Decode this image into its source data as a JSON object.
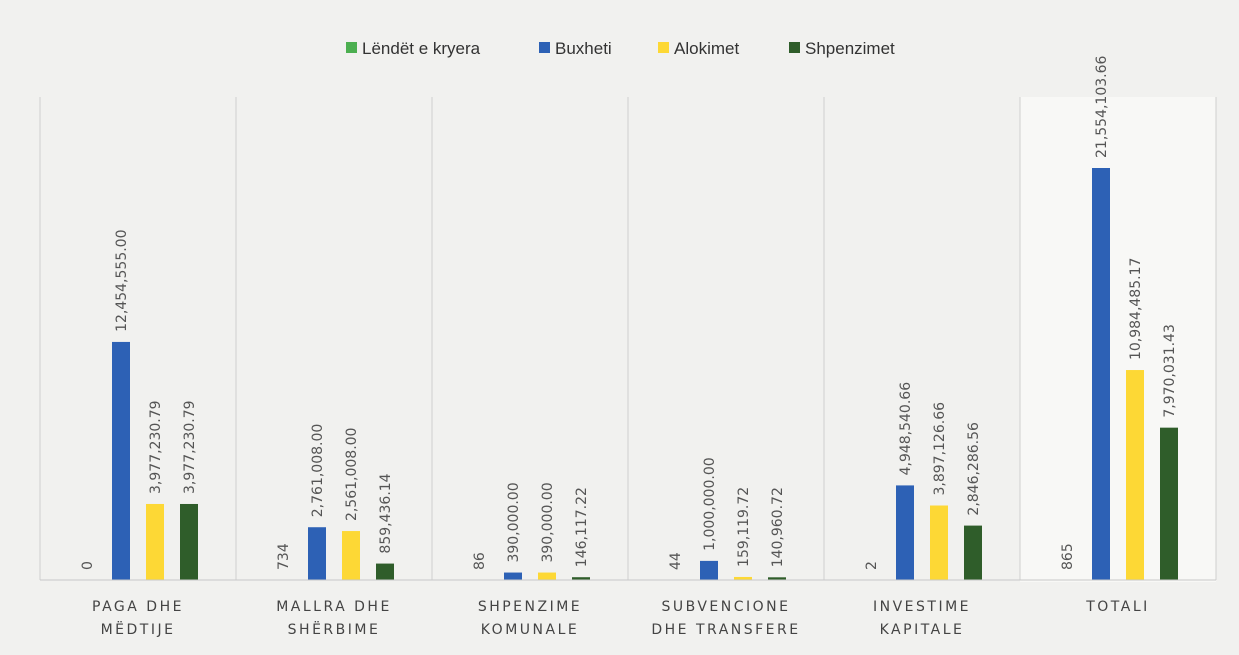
{
  "chart_data": {
    "type": "bar",
    "title": "",
    "xlabel": "",
    "ylabel": "",
    "ylim": [
      0,
      25000000
    ],
    "grid": false,
    "legend_position": "top-center",
    "categories": [
      [
        "PAGA DHE",
        "MËDTIJE"
      ],
      [
        "MALLRA DHE",
        "SHËRBIME"
      ],
      [
        "SHPENZIME",
        "KOMUNALE"
      ],
      [
        "SUBVENCIONE",
        "DHE TRANSFERE"
      ],
      [
        "INVESTIME",
        "KAPITALE"
      ],
      [
        "TOTALI"
      ]
    ],
    "series": [
      {
        "name": "Lëndët e kryera",
        "color": "#4caf50",
        "values": [
          0,
          734,
          86,
          44,
          2,
          865
        ],
        "labels": [
          "0",
          "734",
          "86",
          "44",
          "2",
          "865"
        ]
      },
      {
        "name": "Buxheti",
        "color": "#2d61b5",
        "values": [
          12454555.0,
          2761008.0,
          390000.0,
          1000000.0,
          4948540.66,
          21554103.66
        ],
        "labels": [
          "12,454,555.00",
          "2,761,008.00",
          "390,000.00",
          "1,000,000.00",
          "4,948,540.66",
          "21,554,103.66"
        ]
      },
      {
        "name": "Alokimet",
        "color": "#fdd835",
        "values": [
          3977230.79,
          2561008.0,
          390000.0,
          159119.72,
          3897126.66,
          10984485.17
        ],
        "labels": [
          "3,977,230.79",
          "2,561,008.00",
          "390,000.00",
          "159,119.72",
          "3,897,126.66",
          "10,984,485.17"
        ]
      },
      {
        "name": "Shpenzimet",
        "color": "#2f5d2a",
        "values": [
          3977230.79,
          859436.14,
          146117.22,
          140960.72,
          2846286.56,
          7970031.43
        ],
        "labels": [
          "3,977,230.79",
          "859,436.14",
          "146,117.22",
          "140,960.72",
          "2,846,286.56",
          "7,970,031.43"
        ]
      }
    ]
  }
}
